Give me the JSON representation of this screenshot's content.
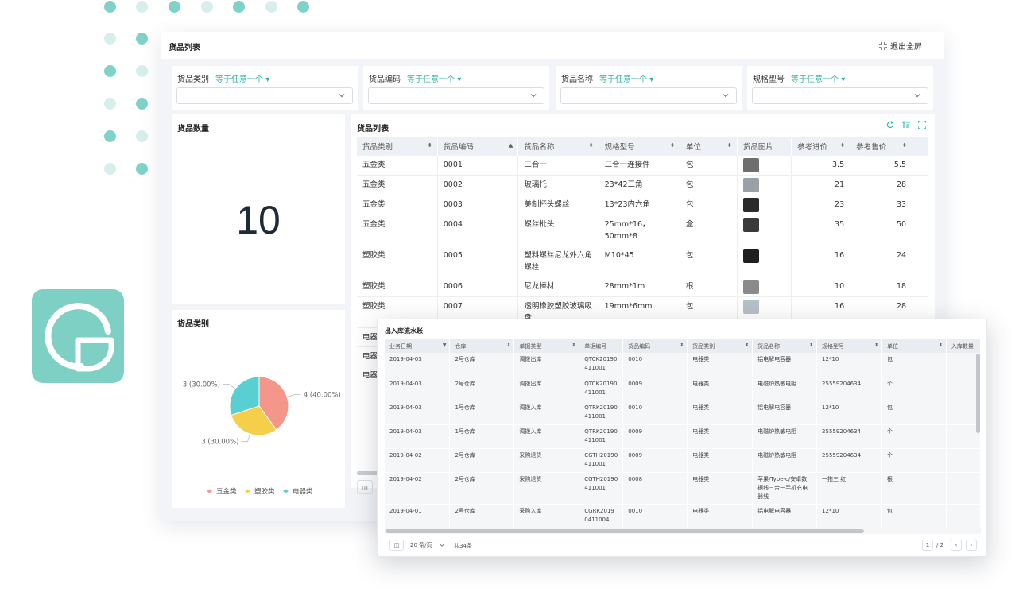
{
  "dashboard": {
    "title": "货品列表",
    "exit_fullscreen": "退出全屏"
  },
  "filters": [
    {
      "label": "货品类别",
      "operator": "等于任意一个"
    },
    {
      "label": "货品编码",
      "operator": "等于任意一个"
    },
    {
      "label": "货品名称",
      "operator": "等于任意一个"
    },
    {
      "label": "规格型号",
      "operator": "等于任意一个"
    }
  ],
  "count_card": {
    "title": "货品数量",
    "value": "10"
  },
  "pie_card": {
    "title": "货品类别"
  },
  "chart_data": {
    "type": "pie",
    "title": "货品类别",
    "categories": [
      "五金类",
      "塑胶类",
      "电器类"
    ],
    "values": [
      4,
      3,
      3
    ],
    "labels": [
      "4 (40.00%)",
      "3 (30.00%)",
      "3 (30.00%)"
    ],
    "colors": [
      "#f4978a",
      "#f6cf4a",
      "#59cfd2"
    ],
    "legend_position": "bottom"
  },
  "goods_table": {
    "title": "货品列表",
    "columns": [
      "货品类别",
      "货品编码",
      "货品名称",
      "规格型号",
      "单位",
      "货品图片",
      "参考进价",
      "参考售价"
    ],
    "rows": [
      {
        "cat": "五金类",
        "code": "0001",
        "name": "三合一",
        "spec": "三合一连接件",
        "unit": "包",
        "buy": "3.5",
        "sell": "5.5"
      },
      {
        "cat": "五金类",
        "code": "0002",
        "name": "玻璃托",
        "spec": "23*42三角",
        "unit": "包",
        "buy": "21",
        "sell": "28"
      },
      {
        "cat": "五金类",
        "code": "0003",
        "name": "美制杯头螺丝",
        "spec": "13*23内六角",
        "unit": "包",
        "buy": "23",
        "sell": "33"
      },
      {
        "cat": "五金类",
        "code": "0004",
        "name": "螺丝批头",
        "spec": "25mm*16，50mm*8",
        "unit": "盒",
        "buy": "35",
        "sell": "50"
      },
      {
        "cat": "塑胶类",
        "code": "0005",
        "name": "塑料螺丝尼龙外六角螺栓",
        "spec": "M10*45",
        "unit": "包",
        "buy": "16",
        "sell": "24"
      },
      {
        "cat": "塑胶类",
        "code": "0006",
        "name": "尼龙棒材",
        "spec": "28mm*1m",
        "unit": "根",
        "buy": "10",
        "sell": "18"
      },
      {
        "cat": "塑胶类",
        "code": "0007",
        "name": "透明橡胶塑胶玻璃吸盘",
        "spec": "19mm*6mm",
        "unit": "包",
        "buy": "16",
        "sell": "28"
      }
    ],
    "partial_rows": [
      "电器类",
      "电器类",
      "电器类"
    ]
  },
  "popup": {
    "title": "出入库流水账",
    "columns": [
      "业务日期",
      "仓库",
      "单据类型",
      "单据编号",
      "货品编码",
      "货品类别",
      "货品名称",
      "规格型号",
      "单位",
      "入库数量"
    ],
    "rows": [
      {
        "date": "2019-04-03",
        "wh": "2号仓库",
        "type": "调拨出库",
        "no": "QTCK20190411001",
        "code": "0010",
        "cat": "电器类",
        "name": "铝电解电容器",
        "spec": "12*10",
        "unit": "包"
      },
      {
        "date": "2019-04-03",
        "wh": "2号仓库",
        "type": "调拨出库",
        "no": "QTCK20190411001",
        "code": "0009",
        "cat": "电器类",
        "name": "电磁炉热敏电阻",
        "spec": "25559204634",
        "unit": "个"
      },
      {
        "date": "2019-04-03",
        "wh": "1号仓库",
        "type": "调拨入库",
        "no": "QTRK20190411001",
        "code": "0010",
        "cat": "电器类",
        "name": "铝电解电容器",
        "spec": "12*10",
        "unit": "包"
      },
      {
        "date": "2019-04-03",
        "wh": "1号仓库",
        "type": "调拨入库",
        "no": "QTRK20190411001",
        "code": "0009",
        "cat": "电器类",
        "name": "电磁炉热敏电阻",
        "spec": "25559204634",
        "unit": "个"
      },
      {
        "date": "2019-04-02",
        "wh": "2号仓库",
        "type": "采购退货",
        "no": "CGTH20190411001",
        "code": "0009",
        "cat": "电器类",
        "name": "电磁炉热敏电阻",
        "spec": "25559204634",
        "unit": "个"
      },
      {
        "date": "2019-04-02",
        "wh": "2号仓库",
        "type": "采购退货",
        "no": "CGTH20190411001",
        "code": "0008",
        "cat": "电器类",
        "name": "苹果/Type-c/安卓数据线三合一手机充电器线",
        "spec": "一拖三 红",
        "unit": "根"
      },
      {
        "date": "2019-04-01",
        "wh": "2号仓库",
        "type": "采购入库",
        "no": "CGRK20190411004",
        "code": "0010",
        "cat": "电器类",
        "name": "铝电解电容器",
        "spec": "12*10",
        "unit": "包"
      }
    ],
    "page_size": "20 条/页",
    "total": "共34条",
    "page_current": "1",
    "page_total": "/ 2"
  },
  "icons": [
    "exit-fullscreen-icon",
    "refresh-icon",
    "sort-icon",
    "fullscreen-icon",
    "chevron-down-icon",
    "column-settings-icon",
    "chevron-left-icon",
    "chevron-right-icon"
  ],
  "colors": {
    "accent": "#2ab3a2",
    "logo": "#7ecfc4",
    "dots": "#7fd3c6"
  }
}
